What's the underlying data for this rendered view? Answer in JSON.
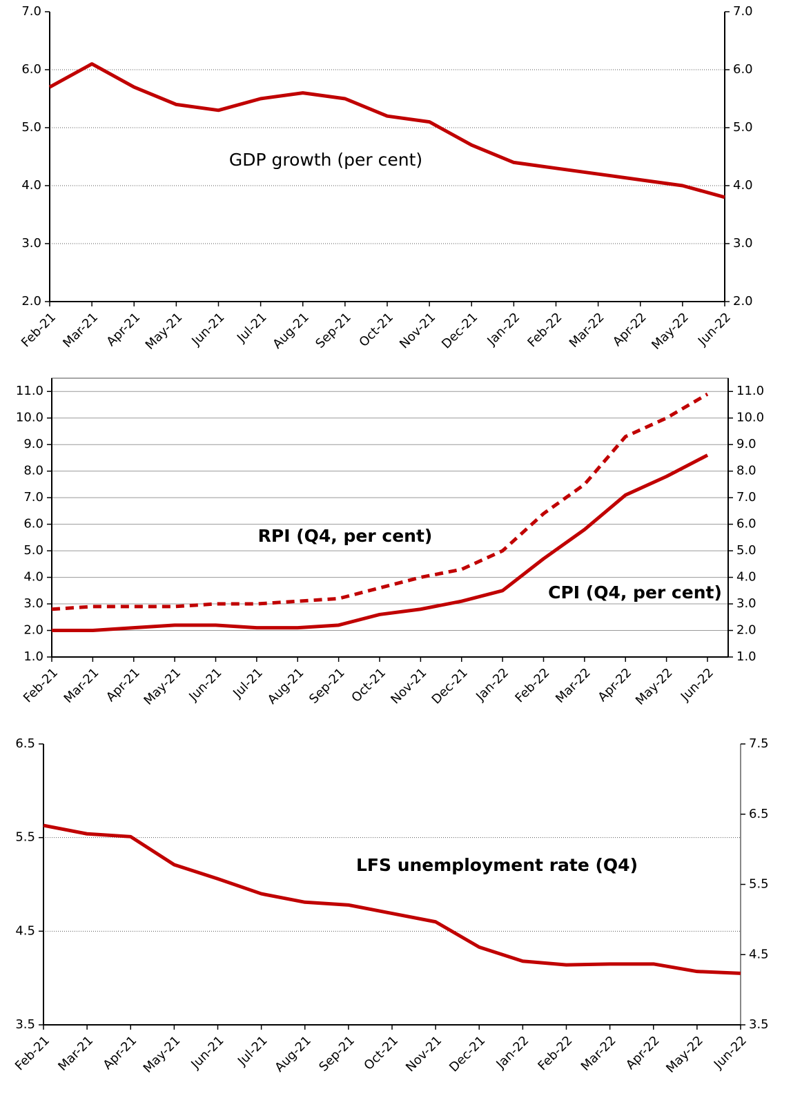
{
  "chart_data": [
    {
      "type": "line",
      "title": "GDP growth (per cent)",
      "categories": [
        "Feb-21",
        "Mar-21",
        "Apr-21",
        "May-21",
        "Jun-21",
        "Jul-21",
        "Aug-21",
        "Sep-21",
        "Oct-21",
        "Nov-21",
        "Dec-21",
        "Jan-22",
        "Feb-22",
        "Mar-22",
        "Apr-22",
        "May-22",
        "Jun-22"
      ],
      "values": [
        5.7,
        6.1,
        5.7,
        5.4,
        5.3,
        5.5,
        5.6,
        5.5,
        5.2,
        5.1,
        4.7,
        4.4,
        4.3,
        4.2,
        4.1,
        4.0,
        3.8
      ],
      "color": "#c00000",
      "ylim": [
        2,
        7
      ],
      "yticks": [
        {
          "value": 2,
          "label": "2.0"
        },
        {
          "value": 3,
          "label": "3.0"
        },
        {
          "value": 4,
          "label": "4.0"
        },
        {
          "value": 5,
          "label": "5.0"
        },
        {
          "value": 6,
          "label": "6.0"
        },
        {
          "value": 7,
          "label": "7.0"
        }
      ],
      "grid": true
    },
    {
      "type": "line",
      "categories": [
        "Feb-21",
        "Mar-21",
        "Apr-21",
        "May-21",
        "Jun-21",
        "Jul-21",
        "Aug-21",
        "Sep-21",
        "Oct-21",
        "Nov-21",
        "Dec-21",
        "Jan-22",
        "Feb-22",
        "Mar-22",
        "Apr-22",
        "May-22",
        "Jun-22"
      ],
      "series": [
        {
          "name": "RPI (Q4, per cent)",
          "color": "#c00000",
          "style": "dashed",
          "values": [
            2.8,
            2.9,
            2.9,
            2.9,
            3.0,
            3.0,
            3.1,
            3.2,
            3.6,
            4.0,
            4.3,
            5.0,
            6.4,
            7.5,
            9.3,
            10.0,
            10.9
          ]
        },
        {
          "name": "CPI (Q4, per cent)",
          "color": "#c00000",
          "style": "solid",
          "values": [
            2.0,
            2.0,
            2.1,
            2.2,
            2.2,
            2.1,
            2.1,
            2.2,
            2.6,
            2.8,
            3.1,
            3.5,
            4.7,
            5.8,
            7.1,
            7.8,
            8.6
          ]
        }
      ],
      "ylim": [
        1,
        11.5
      ],
      "yticks": [
        {
          "value": 1,
          "label": "1.0"
        },
        {
          "value": 2,
          "label": "2.0"
        },
        {
          "value": 3,
          "label": "3.0"
        },
        {
          "value": 4,
          "label": "4.0"
        },
        {
          "value": 5,
          "label": "5.0"
        },
        {
          "value": 6,
          "label": "6.0"
        },
        {
          "value": 7,
          "label": "7.0"
        },
        {
          "value": 8,
          "label": "8.0"
        },
        {
          "value": 9,
          "label": "9.0"
        },
        {
          "value": 10,
          "label": "10.0"
        },
        {
          "value": 11,
          "label": "11.0"
        }
      ],
      "grid": true
    },
    {
      "type": "line",
      "title": "LFS unemployment rate (Q4)",
      "categories": [
        "Feb-21",
        "Mar-21",
        "Apr-21",
        "May-21",
        "Jun-21",
        "Jul-21",
        "Aug-21",
        "Sep-21",
        "Oct-21",
        "Nov-21",
        "Dec-21",
        "Jan-22",
        "Feb-22",
        "Mar-22",
        "Apr-22",
        "May-22",
        "Jun-22"
      ],
      "values": [
        5.63,
        5.54,
        5.51,
        5.21,
        5.06,
        4.9,
        4.81,
        4.78,
        4.69,
        4.6,
        4.33,
        4.18,
        4.14,
        4.15,
        4.15,
        4.07,
        4.05
      ],
      "color": "#c00000",
      "ylim": [
        3.5,
        6.5
      ],
      "yticks": [
        3.5,
        4.5,
        5.5,
        6.5
      ],
      "y2lim": [
        3.5,
        7.5
      ],
      "y2ticks": [
        3.5,
        4.5,
        5.5,
        6.5,
        7.5
      ],
      "grid": true
    }
  ]
}
